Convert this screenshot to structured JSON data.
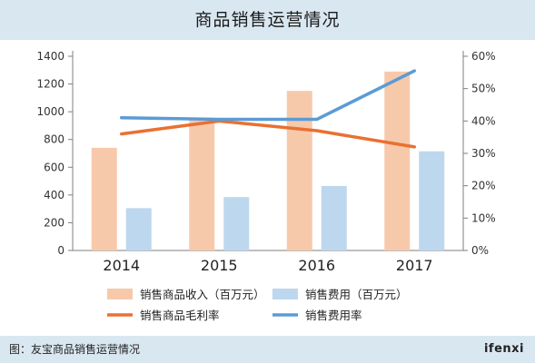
{
  "title": "商品销售运营情况",
  "caption": "图：友宝商品销售运营情况",
  "brand": "ifenxi",
  "colors": {
    "revenue_bar": "#f7c9ab",
    "expense_bar": "#bdd7ee",
    "margin_line": "#e97132",
    "expense_rate_line": "#5b9bd5",
    "header_bg": "#d9e7f1"
  },
  "chart_data": {
    "type": "bar",
    "title": "商品销售运营情况",
    "categories": [
      "2014",
      "2015",
      "2016",
      "2017"
    ],
    "y_left": {
      "ylim": [
        0,
        1400
      ],
      "ticks": [
        "0",
        "200",
        "400",
        "600",
        "800",
        "1000",
        "1200",
        "1400"
      ]
    },
    "y_right": {
      "ylim": [
        0,
        0.6
      ],
      "ticks": [
        "0%",
        "10%",
        "20%",
        "30%",
        "40%",
        "50%",
        "60%"
      ]
    },
    "grid": false,
    "legend_position": "bottom",
    "series": [
      {
        "name": "销售商品收入（百万元）",
        "type": "bar",
        "axis": "left",
        "values": [
          740,
          950,
          1150,
          1290
        ]
      },
      {
        "name": "销售费用（百万元）",
        "type": "bar",
        "axis": "left",
        "values": [
          305,
          385,
          465,
          715
        ]
      },
      {
        "name": "销售商品毛利率",
        "type": "line",
        "axis": "right",
        "values": [
          0.36,
          0.4,
          0.37,
          0.32
        ]
      },
      {
        "name": "销售费用率",
        "type": "line",
        "axis": "right",
        "values": [
          0.41,
          0.405,
          0.405,
          0.555
        ]
      }
    ]
  }
}
